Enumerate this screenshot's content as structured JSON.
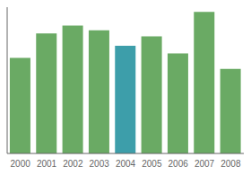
{
  "chart_data": {
    "type": "bar",
    "categories": [
      "2000",
      "2001",
      "2002",
      "2003",
      "2004",
      "2005",
      "2006",
      "2007",
      "2008"
    ],
    "values": [
      62,
      78,
      83,
      80,
      70,
      76,
      65,
      92,
      55
    ],
    "colors": [
      "#6aaa64",
      "#6aaa64",
      "#6aaa64",
      "#6aaa64",
      "#3d9eaa",
      "#6aaa64",
      "#6aaa64",
      "#6aaa64",
      "#6aaa64"
    ],
    "ylim": [
      0,
      95
    ],
    "grid": false,
    "tick_labels": "x"
  }
}
